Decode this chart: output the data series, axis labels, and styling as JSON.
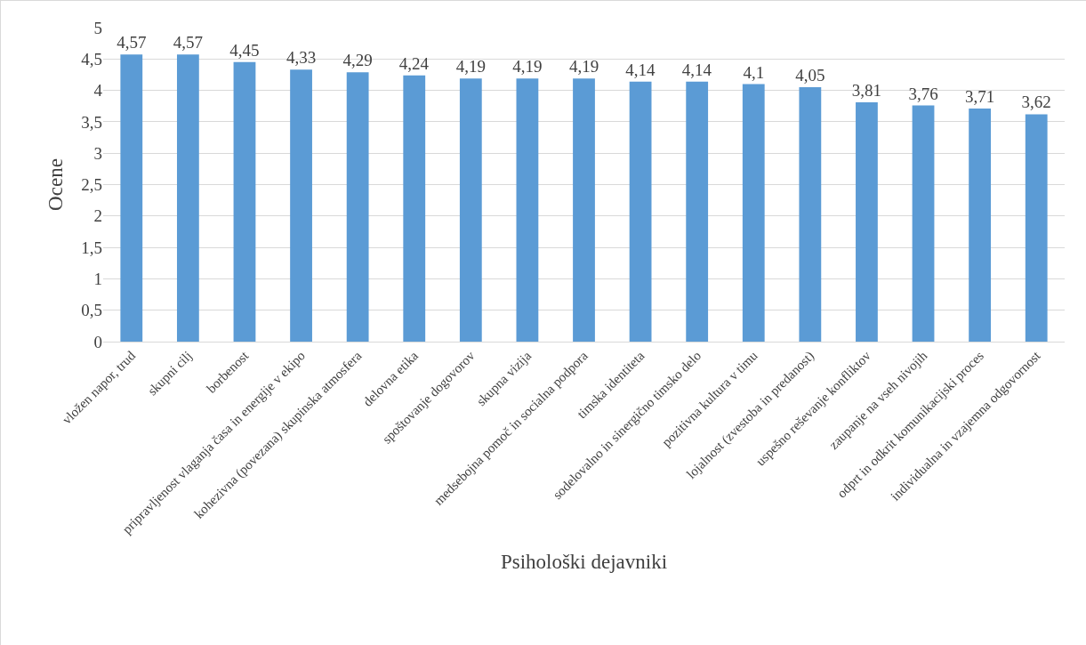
{
  "chart_data": {
    "type": "bar",
    "xlabel": "Psihološki dejavniki",
    "ylabel": "Ocene",
    "categories": [
      "vložen napor, trud",
      "skupni cilj",
      "borbenost",
      "pripravljenost vlaganja časa in energije v ekipo",
      "kohezivna (povezana) skupinska atmosfera",
      "delovna etika",
      "spoštovanje dogovorov",
      "skupna vizija",
      "medsebojna pomoč in socialna podpora",
      "timska identiteta",
      "sodelovalno in sinergično timsko delo",
      "pozitivna kultura v timu",
      "lojalnost (zvestoba in predanost)",
      "uspešno reševanje konfliktov",
      "zaupanje na vseh nivojih",
      "odprt in odkrit komunikacijski proces",
      "individualna in vzajemna odgovornost"
    ],
    "values": [
      4.57,
      4.57,
      4.45,
      4.33,
      4.29,
      4.24,
      4.19,
      4.19,
      4.19,
      4.14,
      4.14,
      4.1,
      4.05,
      3.81,
      3.76,
      3.71,
      3.62
    ],
    "value_labels": [
      "4,57",
      "4,57",
      "4,45",
      "4,33",
      "4,29",
      "4,24",
      "4,19",
      "4,19",
      "4,19",
      "4,14",
      "4,14",
      "4,1",
      "4,05",
      "3,81",
      "3,76",
      "3,71",
      "3,62"
    ],
    "color": "#5b9bd5",
    "ylim": [
      0,
      5
    ],
    "yticks": [
      0,
      {
        "value": 0.5,
        "label": "0,5"
      },
      1,
      {
        "value": 1.5,
        "label": "1,5"
      },
      2,
      {
        "value": 2.5,
        "label": "2,5"
      },
      3,
      {
        "value": 3.5,
        "label": "3,5"
      },
      4,
      {
        "value": 4.5,
        "label": "4,5"
      },
      5
    ],
    "grid": "y"
  }
}
